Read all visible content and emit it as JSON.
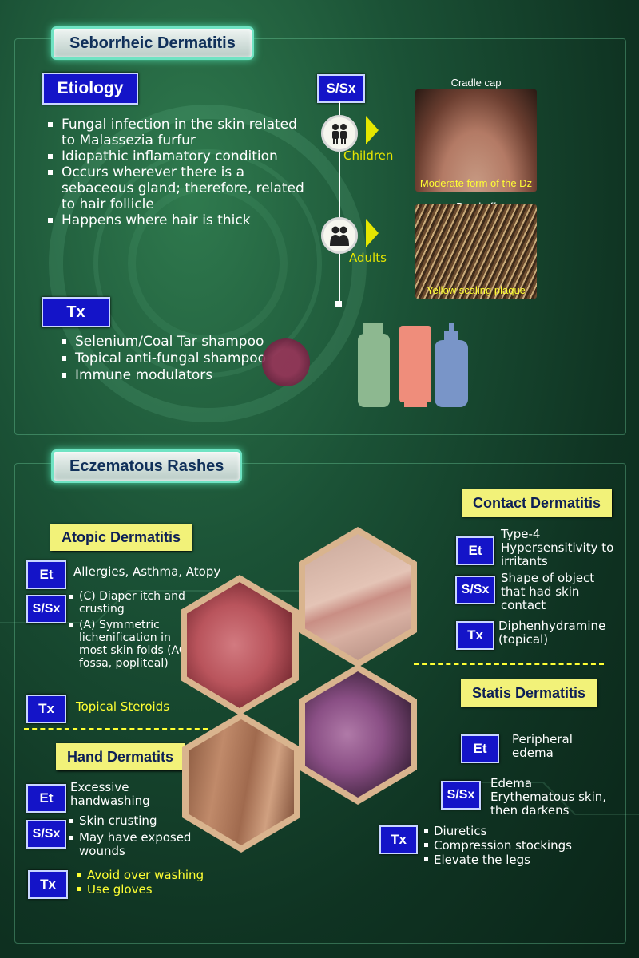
{
  "seb": {
    "title": "Seborrheic Dermatitis",
    "etiology_label": "Etiology",
    "etiology_items": [
      "Fungal infection in the skin related to Malassezia furfur",
      "Idiopathic inflamatory condition",
      "Occurs wherever there is a sebaceous gland; therefore, related to hair follicle",
      "Happens where hair is thick"
    ],
    "ssx_label": "S/Sx",
    "children_label": "Children",
    "adults_label": "Adults",
    "cradle_cap": "Cradle cap",
    "cradle_caption": "Moderate form of the Dz",
    "dandruff": "Dandruff",
    "dandruff_caption": "Yellow scaling plaque",
    "tx_label": "Tx",
    "tx_items": [
      "Selenium/Coal Tar shampoo",
      "Topical anti-fungal shampoo",
      "Immune modulators"
    ]
  },
  "ecz": {
    "title": "Eczematous Rashes",
    "atopic": {
      "title": "Atopic Dermatitis",
      "et_label": "Et",
      "et_text": "Allergies, Asthma, Atopy",
      "ssx_label": "S/Sx",
      "ssx_items": [
        "(C) Diaper itch and crusting",
        "(A) Symmetric lichenification in most skin folds (AC fossa, popliteal)"
      ],
      "tx_label": "Tx",
      "tx_text": "Topical Steroids"
    },
    "contact": {
      "title": "Contact Dermatitis",
      "et_label": "Et",
      "et_text": "Type-4 Hypersensitivity to irritants",
      "ssx_label": "S/Sx",
      "ssx_text": "Shape of object that had skin contact",
      "tx_label": "Tx",
      "tx_text": "Diphenhydramine (topical)"
    },
    "hand": {
      "title": "Hand Dermatits",
      "et_label": "Et",
      "et_text": "Excessive handwashing",
      "ssx_label": "S/Sx",
      "ssx_items": [
        "Skin crusting",
        "May have exposed wounds"
      ],
      "tx_label": "Tx",
      "tx_items": [
        "Avoid over washing",
        "Use gloves"
      ]
    },
    "statis": {
      "title": "Statis Dermatitis",
      "et_label": "Et",
      "et_text": "Peripheral edema",
      "ssx_label": "S/Sx",
      "ssx_text": "Edema Erythematous skin, then darkens",
      "tx_label": "Tx",
      "tx_items": [
        "Diuretics",
        "Compression stockings",
        "Elevate the legs"
      ]
    }
  },
  "colors": {
    "tag_blue": "#1414c8",
    "title_yellow": "#f2f279",
    "accent_yellow": "#ffff33",
    "frame_glow": "#6fe3c3"
  }
}
